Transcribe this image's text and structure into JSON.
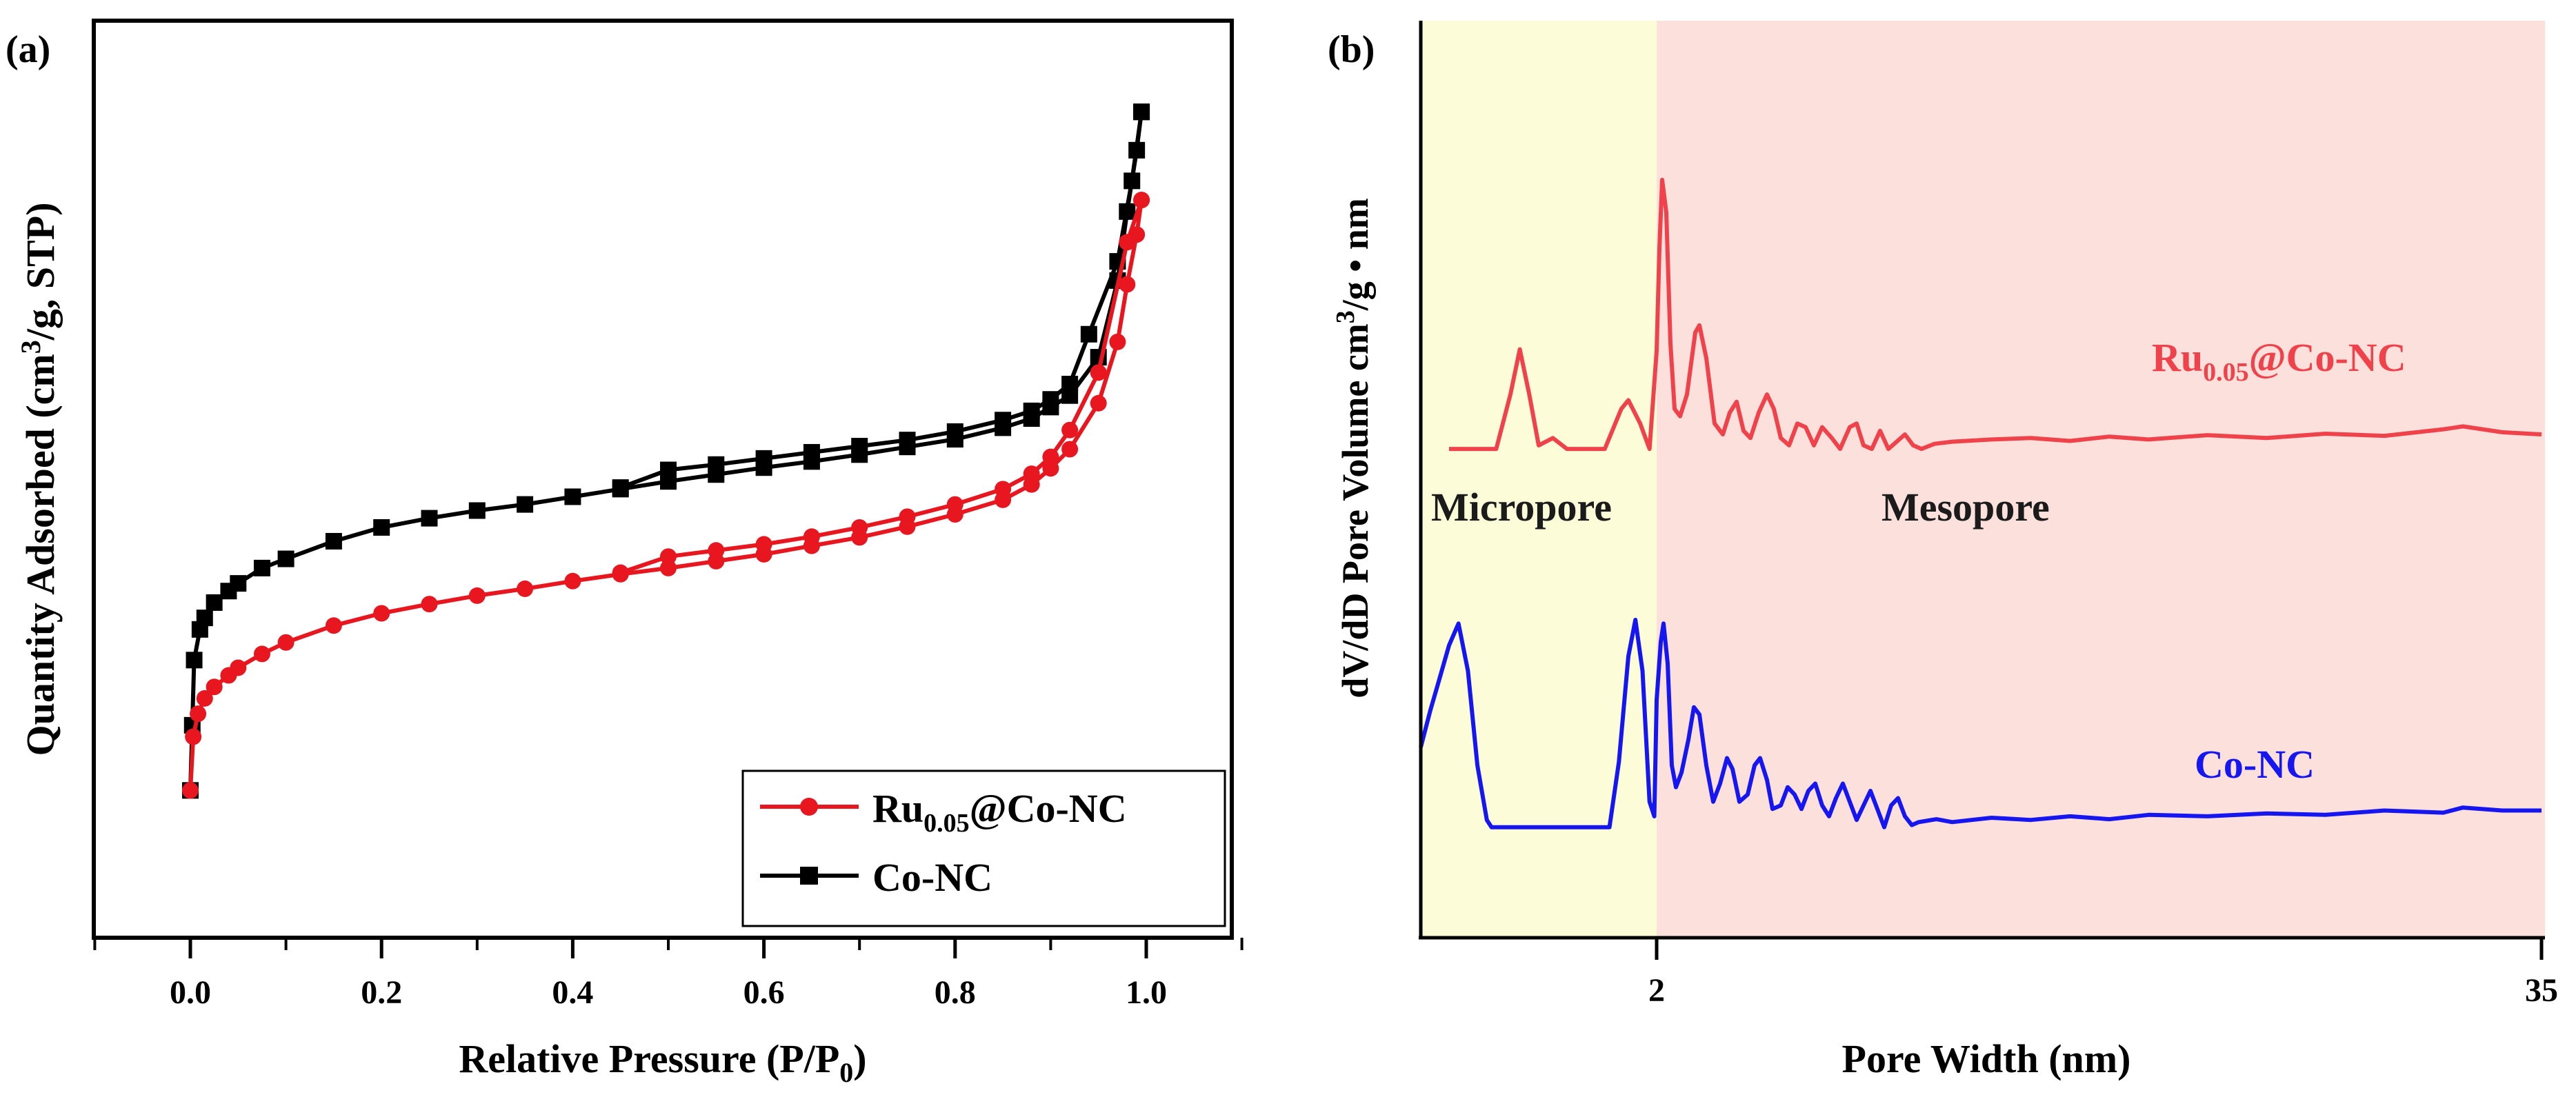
{
  "chart_data": [
    {
      "panel_label": "(a)",
      "type": "line",
      "xlabel": "Relative Pressure (P/P",
      "xlabel_sub": "0",
      "xlabel_end": ")",
      "ylabel": "Quantity Adsorbed (cm",
      "ylabel_sup": "3",
      "ylabel_end": "/g, STP)",
      "xlim": [
        -0.1,
        1.1
      ],
      "ylim": [
        0,
        100
      ],
      "xticks": [
        "0.0",
        "0.2",
        "0.4",
        "0.6",
        "0.8",
        "1.0"
      ],
      "xtick_values": [
        0.0,
        0.2,
        0.4,
        0.6,
        0.8,
        1.0
      ],
      "legend": {
        "position": "bottom-right"
      },
      "series": [
        {
          "name": "Ru0.05@Co-NC",
          "name_base": "Ru",
          "name_sub": "0.05",
          "name_rest": "@Co-NC",
          "color": "#e8161f",
          "marker": "circle",
          "adsorption": [
            [
              0.0,
              9.5
            ],
            [
              0.003,
              16.5
            ],
            [
              0.008,
              19.5
            ],
            [
              0.015,
              21.5
            ],
            [
              0.025,
              23.0
            ],
            [
              0.04,
              24.5
            ],
            [
              0.05,
              25.5
            ],
            [
              0.075,
              27.3
            ],
            [
              0.1,
              28.8
            ],
            [
              0.15,
              31.0
            ],
            [
              0.2,
              32.6
            ],
            [
              0.25,
              33.8
            ],
            [
              0.3,
              34.9
            ],
            [
              0.35,
              35.8
            ],
            [
              0.4,
              36.8
            ],
            [
              0.45,
              37.7
            ],
            [
              0.5,
              38.5
            ],
            [
              0.55,
              39.4
            ],
            [
              0.6,
              40.3
            ],
            [
              0.65,
              41.4
            ],
            [
              0.7,
              42.5
            ],
            [
              0.75,
              43.9
            ],
            [
              0.8,
              45.5
            ],
            [
              0.85,
              47.4
            ],
            [
              0.88,
              49.4
            ],
            [
              0.9,
              51.5
            ],
            [
              0.92,
              54.0
            ],
            [
              0.95,
              60.0
            ],
            [
              0.97,
              68.0
            ],
            [
              0.98,
              75.5
            ],
            [
              0.99,
              82.0
            ],
            [
              0.995,
              86.5
            ]
          ],
          "desorption": [
            [
              0.995,
              86.5
            ],
            [
              0.98,
              81.0
            ],
            [
              0.95,
              64.0
            ],
            [
              0.92,
              56.5
            ],
            [
              0.9,
              53.0
            ],
            [
              0.88,
              50.8
            ],
            [
              0.85,
              48.8
            ],
            [
              0.8,
              46.8
            ],
            [
              0.75,
              45.2
            ],
            [
              0.7,
              43.8
            ],
            [
              0.65,
              42.6
            ],
            [
              0.6,
              41.6
            ],
            [
              0.55,
              40.8
            ],
            [
              0.5,
              40.0
            ],
            [
              0.45,
              37.9
            ]
          ]
        },
        {
          "name": "Co-NC",
          "color": "#000000",
          "marker": "square",
          "adsorption": [
            [
              0.0,
              9.5
            ],
            [
              0.002,
              18.0
            ],
            [
              0.004,
              26.5
            ],
            [
              0.01,
              30.5
            ],
            [
              0.015,
              32.0
            ],
            [
              0.025,
              34.0
            ],
            [
              0.04,
              35.5
            ],
            [
              0.05,
              36.5
            ],
            [
              0.075,
              38.5
            ],
            [
              0.1,
              39.7
            ],
            [
              0.15,
              42.0
            ],
            [
              0.2,
              43.8
            ],
            [
              0.25,
              45.0
            ],
            [
              0.3,
              46.0
            ],
            [
              0.35,
              46.8
            ],
            [
              0.4,
              47.8
            ],
            [
              0.45,
              48.8
            ],
            [
              0.5,
              49.8
            ],
            [
              0.55,
              50.7
            ],
            [
              0.6,
              51.6
            ],
            [
              0.65,
              52.4
            ],
            [
              0.7,
              53.3
            ],
            [
              0.75,
              54.3
            ],
            [
              0.8,
              55.3
            ],
            [
              0.85,
              56.8
            ],
            [
              0.88,
              58.0
            ],
            [
              0.9,
              59.5
            ],
            [
              0.92,
              61.0
            ],
            [
              0.95,
              66.0
            ],
            [
              0.97,
              76.0
            ],
            [
              0.98,
              85.0
            ],
            [
              0.99,
              93.0
            ],
            [
              0.995,
              98.0
            ]
          ],
          "desorption": [
            [
              0.995,
              98.0
            ],
            [
              0.985,
              89.0
            ],
            [
              0.97,
              78.5
            ],
            [
              0.94,
              69.0
            ],
            [
              0.92,
              62.5
            ],
            [
              0.9,
              60.5
            ],
            [
              0.88,
              59.0
            ],
            [
              0.85,
              57.8
            ],
            [
              0.8,
              56.3
            ],
            [
              0.75,
              55.2
            ],
            [
              0.7,
              54.4
            ],
            [
              0.65,
              53.6
            ],
            [
              0.6,
              52.8
            ],
            [
              0.55,
              52.0
            ],
            [
              0.5,
              51.3
            ],
            [
              0.45,
              49.0
            ]
          ]
        }
      ]
    },
    {
      "panel_label": "(b)",
      "type": "line",
      "xlabel": "Pore Width (nm)",
      "ylabel": "dV/dD Pore Volume cm",
      "ylabel_sup": "3",
      "ylabel_end": "/g • nm",
      "xscale": "segmented",
      "xticks": [
        "2",
        "35"
      ],
      "xtick_values": [
        2,
        35
      ],
      "xlim": [
        1.0,
        35
      ],
      "ylim": [
        0,
        100
      ],
      "regions": [
        {
          "label": "Micropore",
          "from": 1.0,
          "to": 2.0,
          "color": "#fdfcd9"
        },
        {
          "label": "Mesopore",
          "from": 2.0,
          "to": 35,
          "color": "#fce0dc"
        }
      ],
      "series": [
        {
          "name": "Ru0.05@Co-NC",
          "name_base": "Ru",
          "name_sub": "0.05",
          "name_rest": "@Co-NC",
          "color": "#f0424a",
          "points": [
            [
              1.12,
              52.5
            ],
            [
              1.2,
              52.5
            ],
            [
              1.32,
              52.5
            ],
            [
              1.38,
              60.0
            ],
            [
              1.42,
              66.2
            ],
            [
              1.46,
              60.0
            ],
            [
              1.5,
              53.0
            ],
            [
              1.56,
              54.0
            ],
            [
              1.62,
              52.5
            ],
            [
              1.7,
              52.5
            ],
            [
              1.78,
              52.5
            ],
            [
              1.85,
              58.0
            ],
            [
              1.88,
              59.2
            ],
            [
              1.93,
              56.0
            ],
            [
              1.97,
              52.5
            ],
            [
              2.0,
              66.0
            ],
            [
              2.02,
              80.0
            ],
            [
              2.04,
              89.5
            ],
            [
              2.07,
              85.0
            ],
            [
              2.1,
              67.0
            ],
            [
              2.13,
              58.0
            ],
            [
              2.17,
              57.0
            ],
            [
              2.22,
              60.0
            ],
            [
              2.28,
              68.5
            ],
            [
              2.31,
              69.5
            ],
            [
              2.36,
              65.0
            ],
            [
              2.42,
              56.0
            ],
            [
              2.48,
              54.5
            ],
            [
              2.53,
              57.5
            ],
            [
              2.58,
              59.0
            ],
            [
              2.63,
              55.0
            ],
            [
              2.68,
              54.0
            ],
            [
              2.74,
              57.5
            ],
            [
              2.8,
              60.0
            ],
            [
              2.85,
              58.0
            ],
            [
              2.9,
              54.0
            ],
            [
              2.96,
              53.0
            ],
            [
              3.02,
              56.0
            ],
            [
              3.08,
              55.5
            ],
            [
              3.14,
              53.0
            ],
            [
              3.2,
              55.5
            ],
            [
              3.27,
              54.0
            ],
            [
              3.33,
              52.5
            ],
            [
              3.4,
              55.5
            ],
            [
              3.45,
              56.0
            ],
            [
              3.5,
              53.0
            ],
            [
              3.56,
              52.5
            ],
            [
              3.62,
              55.0
            ],
            [
              3.68,
              52.5
            ],
            [
              3.74,
              53.5
            ],
            [
              3.8,
              54.5
            ],
            [
              3.86,
              53.0
            ],
            [
              3.92,
              52.5
            ],
            [
              4.1,
              53.2
            ],
            [
              5,
              53.5
            ],
            [
              7,
              53.8
            ],
            [
              9,
              54.0
            ],
            [
              11,
              53.6
            ],
            [
              13,
              54.2
            ],
            [
              15,
              53.8
            ],
            [
              18,
              54.4
            ],
            [
              21,
              54.0
            ],
            [
              24,
              54.6
            ],
            [
              27,
              54.3
            ],
            [
              30,
              55.2
            ],
            [
              31,
              55.6
            ],
            [
              33,
              54.8
            ],
            [
              35,
              54.5
            ]
          ]
        },
        {
          "name": "Co-NC",
          "color": "#1616f0",
          "points": [
            [
              1.0,
              11.5
            ],
            [
              1.04,
              16.5
            ],
            [
              1.08,
              21.0
            ],
            [
              1.12,
              25.5
            ],
            [
              1.16,
              28.5
            ],
            [
              1.2,
              22.0
            ],
            [
              1.24,
              9.0
            ],
            [
              1.28,
              1.5
            ],
            [
              1.3,
              0.5
            ],
            [
              1.4,
              0.5
            ],
            [
              1.55,
              0.5
            ],
            [
              1.7,
              0.5
            ],
            [
              1.8,
              0.5
            ],
            [
              1.84,
              9.5
            ],
            [
              1.88,
              24.0
            ],
            [
              1.91,
              29.0
            ],
            [
              1.94,
              22.0
            ],
            [
              1.97,
              4.0
            ],
            [
              1.99,
              2.0
            ],
            [
              2.0,
              18.0
            ],
            [
              2.03,
              26.0
            ],
            [
              2.05,
              28.5
            ],
            [
              2.08,
              23.0
            ],
            [
              2.11,
              9.0
            ],
            [
              2.14,
              6.0
            ],
            [
              2.18,
              8.0
            ],
            [
              2.23,
              12.5
            ],
            [
              2.27,
              17.0
            ],
            [
              2.31,
              16.0
            ],
            [
              2.36,
              9.0
            ],
            [
              2.41,
              4.0
            ],
            [
              2.46,
              6.5
            ],
            [
              2.51,
              10.0
            ],
            [
              2.55,
              8.5
            ],
            [
              2.6,
              4.0
            ],
            [
              2.66,
              5.0
            ],
            [
              2.71,
              9.0
            ],
            [
              2.75,
              10.0
            ],
            [
              2.8,
              7.0
            ],
            [
              2.84,
              3.0
            ],
            [
              2.9,
              3.5
            ],
            [
              2.95,
              6.0
            ],
            [
              3.0,
              5.0
            ],
            [
              3.05,
              3.0
            ],
            [
              3.1,
              5.5
            ],
            [
              3.15,
              6.5
            ],
            [
              3.2,
              3.5
            ],
            [
              3.25,
              2.0
            ],
            [
              3.3,
              4.5
            ],
            [
              3.35,
              6.5
            ],
            [
              3.4,
              4.0
            ],
            [
              3.45,
              1.5
            ],
            [
              3.5,
              3.5
            ],
            [
              3.55,
              5.5
            ],
            [
              3.6,
              3.0
            ],
            [
              3.65,
              0.5
            ],
            [
              3.7,
              3.5
            ],
            [
              3.75,
              4.5
            ],
            [
              3.8,
              2.0
            ],
            [
              3.85,
              0.8
            ],
            [
              3.9,
              1.2
            ],
            [
              4.2,
              1.6
            ],
            [
              5,
              1.2
            ],
            [
              7,
              1.8
            ],
            [
              9,
              1.5
            ],
            [
              11,
              2.0
            ],
            [
              13,
              1.6
            ],
            [
              15,
              2.2
            ],
            [
              18,
              2.0
            ],
            [
              21,
              2.4
            ],
            [
              24,
              2.2
            ],
            [
              27,
              2.8
            ],
            [
              30,
              2.5
            ],
            [
              31,
              3.2
            ],
            [
              33,
              2.8
            ],
            [
              35,
              2.8
            ]
          ]
        }
      ]
    }
  ]
}
